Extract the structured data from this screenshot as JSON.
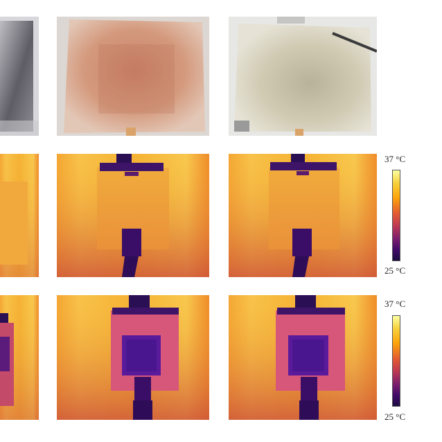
{
  "colorbars": [
    {
      "max_label": "37 °C",
      "min_label": "25 °C"
    },
    {
      "max_label": "37 °C",
      "min_label": "25 °C"
    }
  ]
}
